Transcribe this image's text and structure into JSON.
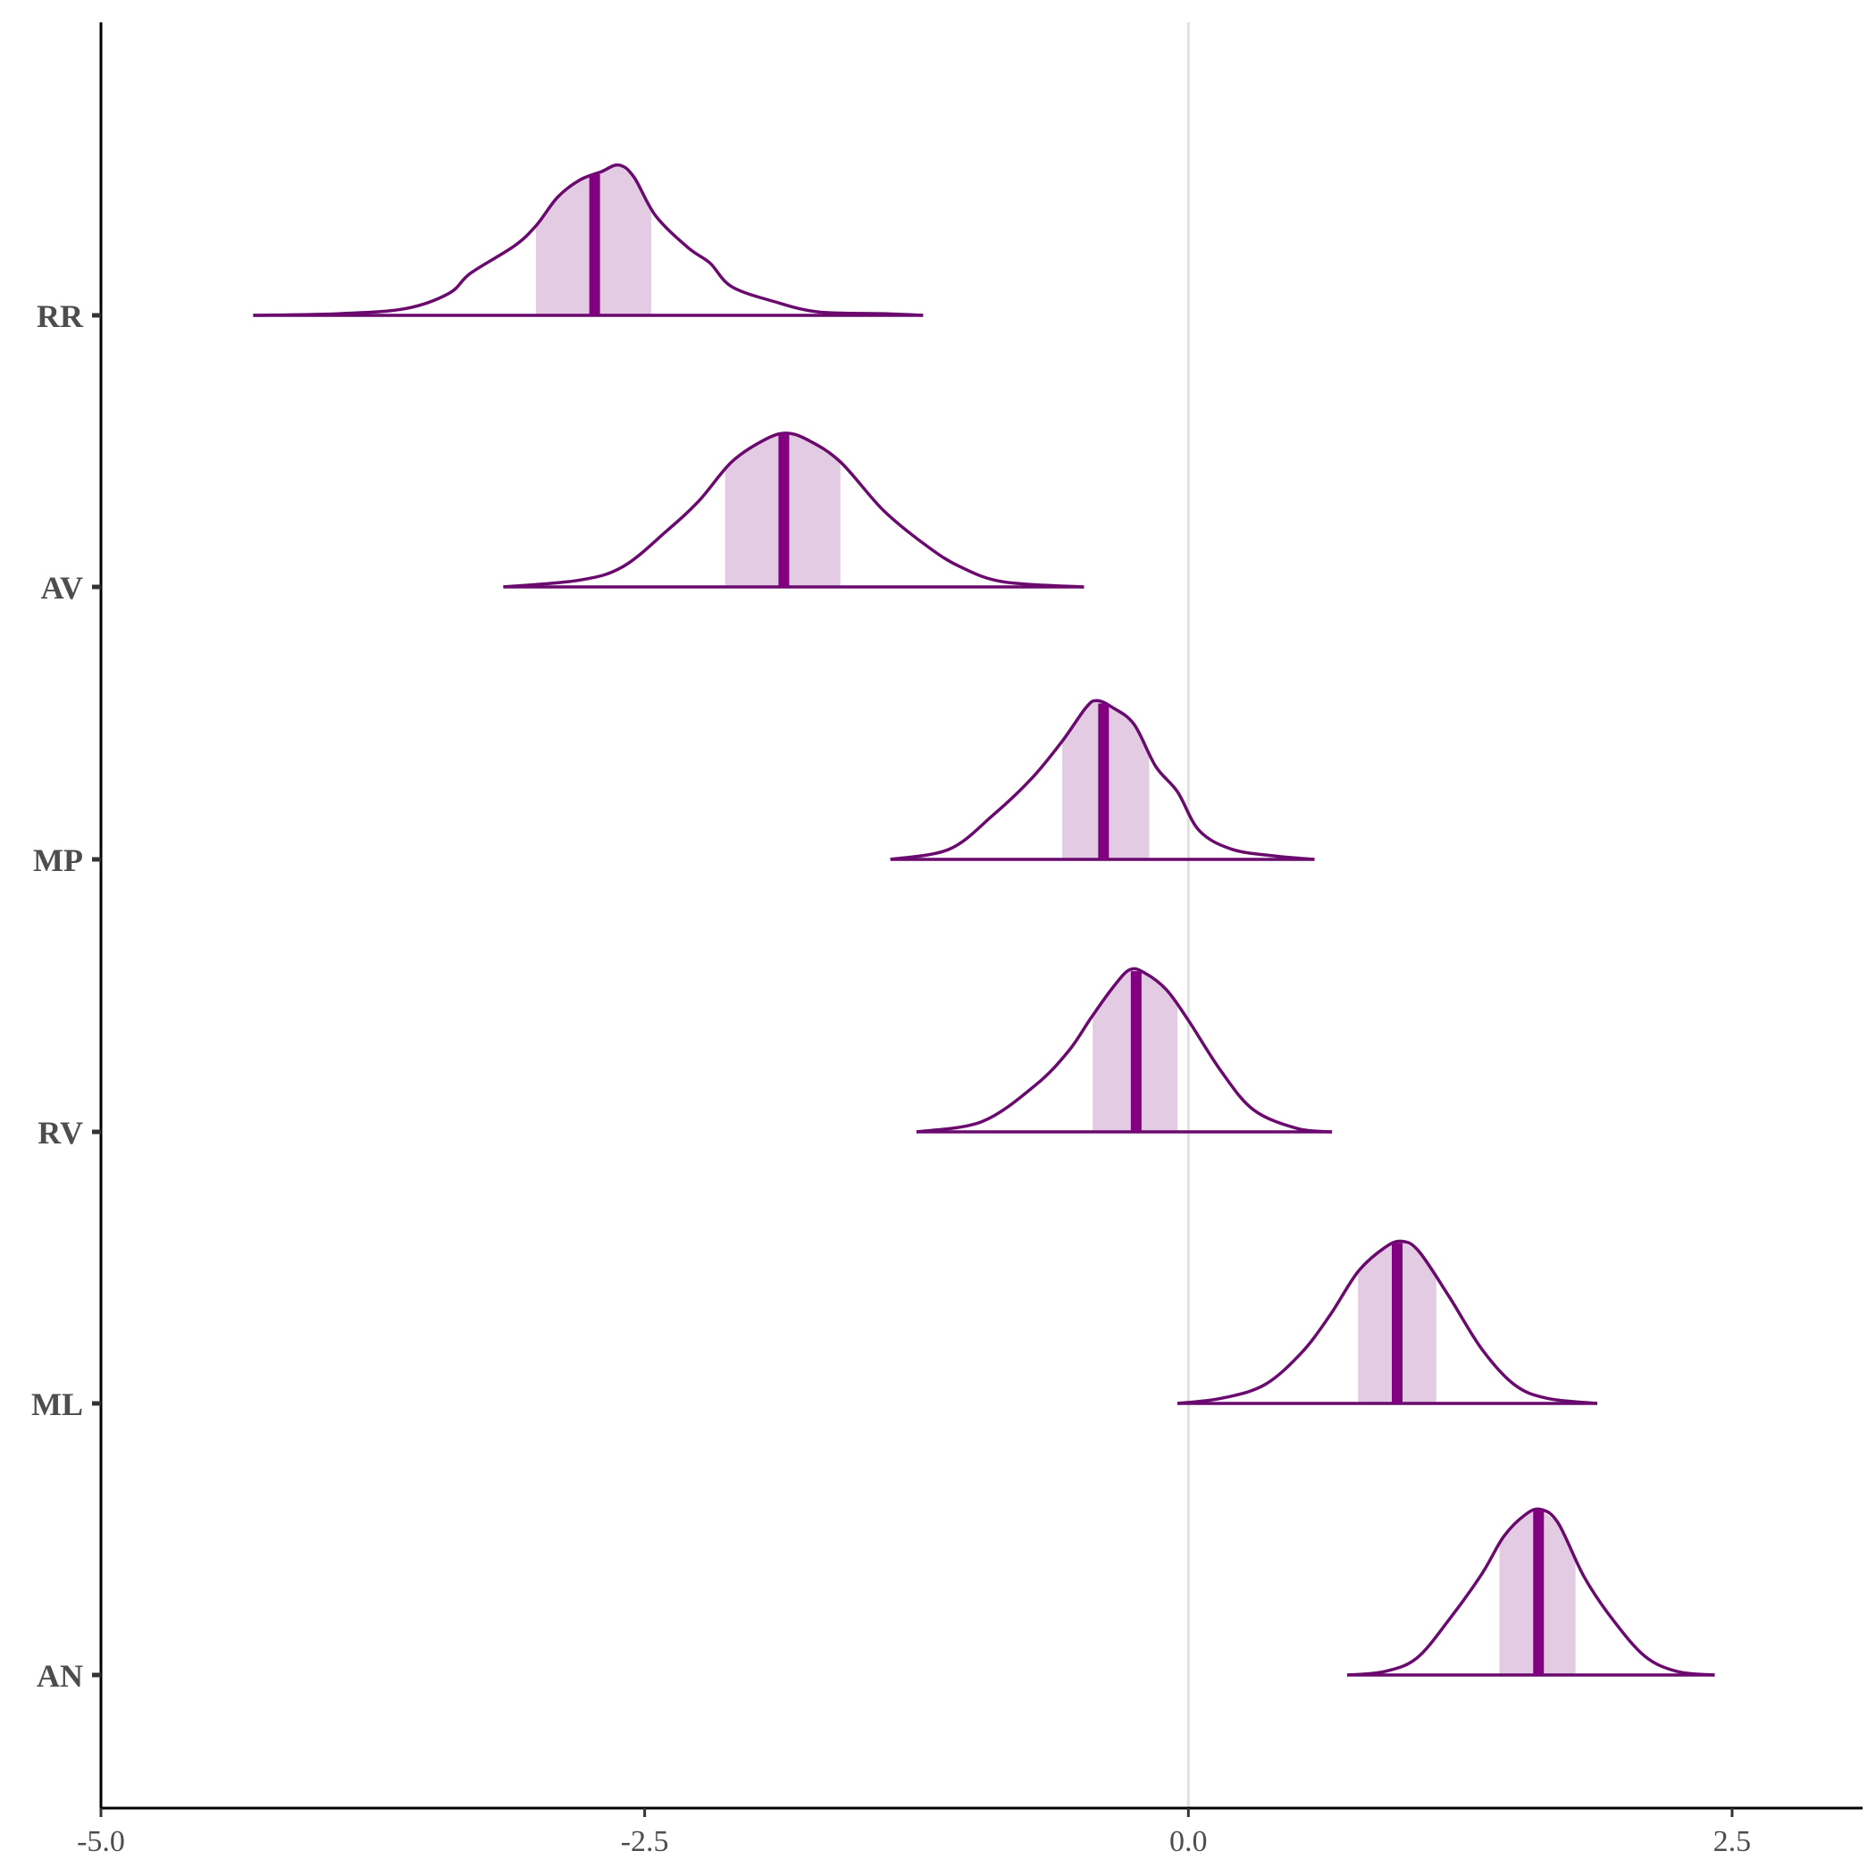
{
  "chart_data": {
    "type": "area",
    "title": "",
    "xlabel": "",
    "ylabel": "",
    "xlim": [
      -5.0,
      3.1
    ],
    "x_ticks": [
      -5.0,
      -2.5,
      0.0,
      2.5
    ],
    "x_tick_labels": [
      "-5.0",
      "-2.5",
      "0.0",
      "2.5"
    ],
    "reference_line_x": 0.0,
    "grid": false,
    "legend": "none",
    "colors": {
      "outline": "#6a0a6e",
      "median": "#800080",
      "interval_fill": "#e3cce3",
      "axis": "#000000",
      "reference_line": "#e0e0e0"
    },
    "categories": [
      "RR",
      "AV",
      "MP",
      "RV",
      "ML",
      "AN"
    ],
    "series": [
      {
        "name": "RR",
        "median": -2.73,
        "interval": [
          -3.0,
          -2.47
        ],
        "range": [
          -4.3,
          -1.22
        ],
        "density": [
          [
            -4.3,
            0.0
          ],
          [
            -3.9,
            0.01
          ],
          [
            -3.6,
            0.04
          ],
          [
            -3.4,
            0.13
          ],
          [
            -3.3,
            0.25
          ],
          [
            -3.1,
            0.41
          ],
          [
            -3.0,
            0.53
          ],
          [
            -2.9,
            0.7
          ],
          [
            -2.8,
            0.8
          ],
          [
            -2.7,
            0.85
          ],
          [
            -2.62,
            0.89
          ],
          [
            -2.55,
            0.82
          ],
          [
            -2.45,
            0.59
          ],
          [
            -2.3,
            0.4
          ],
          [
            -2.2,
            0.31
          ],
          [
            -2.1,
            0.17
          ],
          [
            -1.9,
            0.08
          ],
          [
            -1.7,
            0.02
          ],
          [
            -1.4,
            0.01
          ],
          [
            -1.22,
            0.0
          ]
        ]
      },
      {
        "name": "AV",
        "median": -1.86,
        "interval": [
          -2.13,
          -1.6
        ],
        "range": [
          -3.15,
          -0.48
        ],
        "density": [
          [
            -3.15,
            0.0
          ],
          [
            -2.8,
            0.04
          ],
          [
            -2.6,
            0.12
          ],
          [
            -2.4,
            0.33
          ],
          [
            -2.25,
            0.51
          ],
          [
            -2.1,
            0.74
          ],
          [
            -1.95,
            0.87
          ],
          [
            -1.85,
            0.91
          ],
          [
            -1.75,
            0.87
          ],
          [
            -1.6,
            0.74
          ],
          [
            -1.4,
            0.45
          ],
          [
            -1.2,
            0.24
          ],
          [
            -1.05,
            0.12
          ],
          [
            -0.85,
            0.03
          ],
          [
            -0.48,
            0.0
          ]
        ]
      },
      {
        "name": "MP",
        "median": -0.39,
        "interval": [
          -0.58,
          -0.18
        ],
        "range": [
          -1.37,
          0.58
        ],
        "density": [
          [
            -1.37,
            0.0
          ],
          [
            -1.1,
            0.06
          ],
          [
            -0.9,
            0.26
          ],
          [
            -0.72,
            0.48
          ],
          [
            -0.58,
            0.7
          ],
          [
            -0.47,
            0.9
          ],
          [
            -0.42,
            0.94
          ],
          [
            -0.35,
            0.9
          ],
          [
            -0.25,
            0.8
          ],
          [
            -0.15,
            0.55
          ],
          [
            -0.05,
            0.4
          ],
          [
            0.05,
            0.17
          ],
          [
            0.2,
            0.06
          ],
          [
            0.4,
            0.02
          ],
          [
            0.58,
            0.0
          ]
        ]
      },
      {
        "name": "RV",
        "median": -0.24,
        "interval": [
          -0.44,
          -0.05
        ],
        "range": [
          -1.25,
          0.66
        ],
        "density": [
          [
            -1.25,
            0.0
          ],
          [
            -0.95,
            0.06
          ],
          [
            -0.7,
            0.28
          ],
          [
            -0.55,
            0.48
          ],
          [
            -0.45,
            0.67
          ],
          [
            -0.35,
            0.85
          ],
          [
            -0.27,
            0.96
          ],
          [
            -0.2,
            0.94
          ],
          [
            -0.1,
            0.84
          ],
          [
            0.0,
            0.66
          ],
          [
            0.15,
            0.36
          ],
          [
            0.3,
            0.13
          ],
          [
            0.5,
            0.02
          ],
          [
            0.66,
            0.0
          ]
        ]
      },
      {
        "name": "ML",
        "median": 0.96,
        "interval": [
          0.78,
          1.14
        ],
        "range": [
          -0.05,
          1.88
        ],
        "density": [
          [
            -0.05,
            0.0
          ],
          [
            0.15,
            0.03
          ],
          [
            0.35,
            0.11
          ],
          [
            0.52,
            0.3
          ],
          [
            0.65,
            0.52
          ],
          [
            0.78,
            0.78
          ],
          [
            0.9,
            0.92
          ],
          [
            0.98,
            0.96
          ],
          [
            1.06,
            0.9
          ],
          [
            1.2,
            0.63
          ],
          [
            1.35,
            0.32
          ],
          [
            1.5,
            0.11
          ],
          [
            1.65,
            0.03
          ],
          [
            1.88,
            0.0
          ]
        ]
      },
      {
        "name": "AN",
        "median": 1.61,
        "interval": [
          1.43,
          1.78
        ],
        "range": [
          0.73,
          2.42
        ],
        "density": [
          [
            0.73,
            0.0
          ],
          [
            0.9,
            0.02
          ],
          [
            1.05,
            0.1
          ],
          [
            1.2,
            0.33
          ],
          [
            1.35,
            0.6
          ],
          [
            1.45,
            0.82
          ],
          [
            1.55,
            0.95
          ],
          [
            1.62,
            0.98
          ],
          [
            1.7,
            0.9
          ],
          [
            1.82,
            0.58
          ],
          [
            1.95,
            0.33
          ],
          [
            2.1,
            0.11
          ],
          [
            2.25,
            0.02
          ],
          [
            2.42,
            0.0
          ]
        ]
      }
    ]
  }
}
